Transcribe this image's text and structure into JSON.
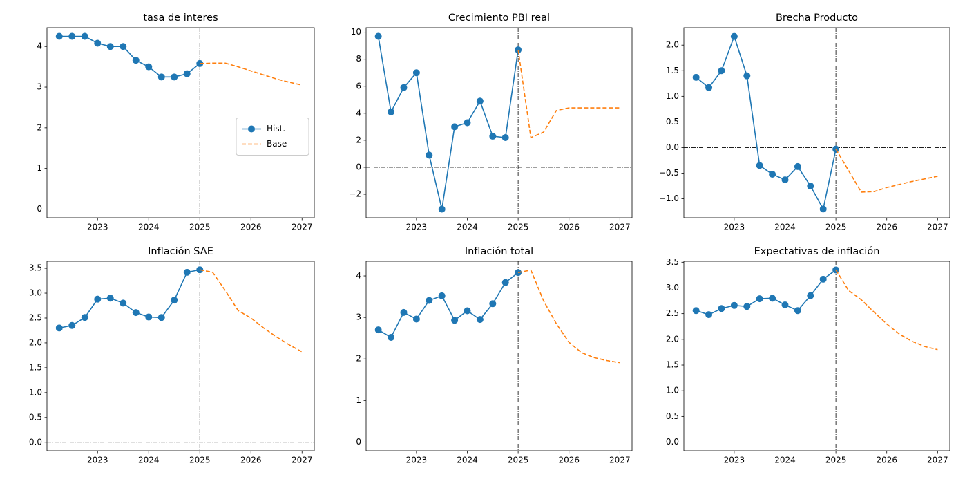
{
  "chart_data": [
    {
      "type": "line",
      "title": "tasa de interes",
      "legend": "center right",
      "xlim": [
        2022.01,
        2027.24
      ],
      "xticks": [
        2023,
        2024,
        2025,
        2026,
        2027
      ],
      "ylim": [
        -0.2125,
        4.4625
      ],
      "yticks": [
        0,
        1,
        2,
        3,
        4
      ],
      "hline": 0,
      "vline": 2025,
      "series": [
        {
          "name": "Hist.",
          "color": "#1f77b4",
          "style": "solid",
          "marker": "o",
          "x": [
            2022.25,
            2022.5,
            2022.75,
            2023,
            2023.25,
            2023.5,
            2023.75,
            2024,
            2024.25,
            2024.5,
            2024.75,
            2025
          ],
          "values": [
            4.25,
            4.25,
            4.25,
            4.08,
            4.0,
            4.0,
            3.66,
            3.5,
            3.25,
            3.25,
            3.33,
            3.58
          ]
        },
        {
          "name": "Base",
          "color": "#ff7f0e",
          "style": "dashed",
          "x": [
            2025,
            2025.25,
            2025.5,
            2025.75,
            2026,
            2026.25,
            2026.5,
            2026.75,
            2027
          ],
          "values": [
            3.58,
            3.59,
            3.59,
            3.5,
            3.4,
            3.3,
            3.2,
            3.12,
            3.05
          ]
        }
      ]
    },
    {
      "type": "line",
      "title": "Crecimiento PBI real",
      "xlim": [
        2022.01,
        2027.24
      ],
      "xticks": [
        2023,
        2024,
        2025,
        2026,
        2027
      ],
      "ylim": [
        -3.74,
        10.34
      ],
      "yticks": [
        {
          "value": -2,
          "label": "−2"
        },
        0,
        2,
        4,
        6,
        8,
        10
      ],
      "hline": 0,
      "vline": 2025,
      "series": [
        {
          "color": "#1f77b4",
          "style": "solid",
          "marker": "o",
          "x": [
            2022.25,
            2022.5,
            2022.75,
            2023,
            2023.25,
            2023.5,
            2023.75,
            2024,
            2024.25,
            2024.5,
            2024.75,
            2025
          ],
          "values": [
            9.7,
            4.1,
            5.9,
            7.0,
            0.9,
            -3.1,
            3.0,
            3.3,
            4.9,
            2.3,
            2.2,
            8.7
          ]
        },
        {
          "color": "#ff7f0e",
          "style": "dashed",
          "x": [
            2025,
            2025.25,
            2025.5,
            2025.75,
            2026,
            2026.25,
            2026.5,
            2026.75,
            2027
          ],
          "values": [
            8.7,
            2.2,
            2.6,
            4.2,
            4.4,
            4.4,
            4.4,
            4.4,
            4.4
          ]
        }
      ]
    },
    {
      "type": "line",
      "title": "Brecha Producto",
      "xlim": [
        2022.01,
        2027.24
      ],
      "xticks": [
        2023,
        2024,
        2025,
        2026,
        2027
      ],
      "ylim": [
        -1.37,
        2.34
      ],
      "yticks": [
        {
          "value": -1,
          "label": "−1.0"
        },
        {
          "value": -0.5,
          "label": "−0.5"
        },
        {
          "value": 0,
          "label": "0.0"
        },
        {
          "value": 0.5,
          "label": "0.5"
        },
        {
          "value": 1,
          "label": "1.0"
        },
        {
          "value": 1.5,
          "label": "1.5"
        },
        {
          "value": 2,
          "label": "2.0"
        }
      ],
      "hline": 0,
      "vline": 2025,
      "series": [
        {
          "color": "#1f77b4",
          "style": "solid",
          "marker": "o",
          "x": [
            2022.25,
            2022.5,
            2022.75,
            2023,
            2023.25,
            2023.5,
            2023.75,
            2024,
            2024.25,
            2024.5,
            2024.75,
            2025
          ],
          "values": [
            1.37,
            1.17,
            1.5,
            2.17,
            1.4,
            -0.35,
            -0.52,
            -0.63,
            -0.37,
            -0.75,
            -1.2,
            -0.03
          ]
        },
        {
          "color": "#ff7f0e",
          "style": "dashed",
          "x": [
            2025,
            2025.25,
            2025.5,
            2025.75,
            2026,
            2026.25,
            2026.5,
            2026.75,
            2027
          ],
          "values": [
            -0.03,
            -0.45,
            -0.87,
            -0.86,
            -0.78,
            -0.72,
            -0.66,
            -0.61,
            -0.56
          ]
        }
      ]
    },
    {
      "type": "line",
      "title": "Inflación SAE",
      "xlim": [
        2022.01,
        2027.24
      ],
      "xticks": [
        2023,
        2024,
        2025,
        2026,
        2027
      ],
      "ylim": [
        -0.17,
        3.64
      ],
      "yticks": [
        {
          "value": 0,
          "label": "0.0"
        },
        {
          "value": 0.5,
          "label": "0.5"
        },
        {
          "value": 1,
          "label": "1.0"
        },
        {
          "value": 1.5,
          "label": "1.5"
        },
        {
          "value": 2,
          "label": "2.0"
        },
        {
          "value": 2.5,
          "label": "2.5"
        },
        {
          "value": 3,
          "label": "3.0"
        },
        {
          "value": 3.5,
          "label": "3.5"
        }
      ],
      "hline": 0,
      "vline": 2025,
      "series": [
        {
          "color": "#1f77b4",
          "style": "solid",
          "marker": "o",
          "x": [
            2022.25,
            2022.5,
            2022.75,
            2023,
            2023.25,
            2023.5,
            2023.75,
            2024,
            2024.25,
            2024.5,
            2024.75,
            2025
          ],
          "values": [
            2.3,
            2.35,
            2.51,
            2.88,
            2.9,
            2.8,
            2.61,
            2.52,
            2.51,
            2.86,
            3.42,
            3.47
          ]
        },
        {
          "color": "#ff7f0e",
          "style": "dashed",
          "x": [
            2025,
            2025.25,
            2025.5,
            2025.75,
            2026,
            2026.25,
            2026.5,
            2026.75,
            2027
          ],
          "values": [
            3.47,
            3.42,
            3.05,
            2.65,
            2.5,
            2.3,
            2.12,
            1.96,
            1.82
          ]
        }
      ]
    },
    {
      "type": "line",
      "title": "Inflación total",
      "xlim": [
        2022.01,
        2027.24
      ],
      "xticks": [
        2023,
        2024,
        2025,
        2026,
        2027
      ],
      "ylim": [
        -0.21,
        4.35
      ],
      "yticks": [
        0,
        1,
        2,
        3,
        4
      ],
      "hline": 0,
      "vline": 2025,
      "series": [
        {
          "color": "#1f77b4",
          "style": "solid",
          "marker": "o",
          "x": [
            2022.25,
            2022.5,
            2022.75,
            2023,
            2023.25,
            2023.5,
            2023.75,
            2024,
            2024.25,
            2024.5,
            2024.75,
            2025
          ],
          "values": [
            2.7,
            2.52,
            3.12,
            2.96,
            3.41,
            3.52,
            2.93,
            3.16,
            2.95,
            3.33,
            3.84,
            4.08
          ]
        },
        {
          "color": "#ff7f0e",
          "style": "dashed",
          "x": [
            2025,
            2025.25,
            2025.5,
            2025.75,
            2026,
            2026.25,
            2026.5,
            2026.75,
            2027
          ],
          "values": [
            4.08,
            4.14,
            3.4,
            2.85,
            2.4,
            2.15,
            2.03,
            1.96,
            1.91
          ]
        }
      ]
    },
    {
      "type": "line",
      "title": "Expectativas de inflación",
      "xlim": [
        2022.01,
        2027.24
      ],
      "xticks": [
        2023,
        2024,
        2025,
        2026,
        2027
      ],
      "ylim": [
        -0.1675,
        3.5175
      ],
      "yticks": [
        {
          "value": 0,
          "label": "0.0"
        },
        {
          "value": 0.5,
          "label": "0.5"
        },
        {
          "value": 1,
          "label": "1.0"
        },
        {
          "value": 1.5,
          "label": "1.5"
        },
        {
          "value": 2,
          "label": "2.0"
        },
        {
          "value": 2.5,
          "label": "2.5"
        },
        {
          "value": 3,
          "label": "3.0"
        },
        {
          "value": 3.5,
          "label": "3.5"
        }
      ],
      "hline": 0,
      "vline": 2025,
      "series": [
        {
          "color": "#1f77b4",
          "style": "solid",
          "marker": "o",
          "x": [
            2022.25,
            2022.5,
            2022.75,
            2023,
            2023.25,
            2023.5,
            2023.75,
            2024,
            2024.25,
            2024.5,
            2024.75,
            2025
          ],
          "values": [
            2.56,
            2.48,
            2.6,
            2.66,
            2.64,
            2.79,
            2.8,
            2.67,
            2.56,
            2.85,
            3.17,
            3.35
          ]
        },
        {
          "color": "#ff7f0e",
          "style": "dashed",
          "x": [
            2025,
            2025.25,
            2025.5,
            2025.75,
            2026,
            2026.25,
            2026.5,
            2026.75,
            2027
          ],
          "values": [
            3.35,
            2.95,
            2.77,
            2.53,
            2.3,
            2.1,
            1.96,
            1.86,
            1.8
          ]
        }
      ]
    }
  ]
}
